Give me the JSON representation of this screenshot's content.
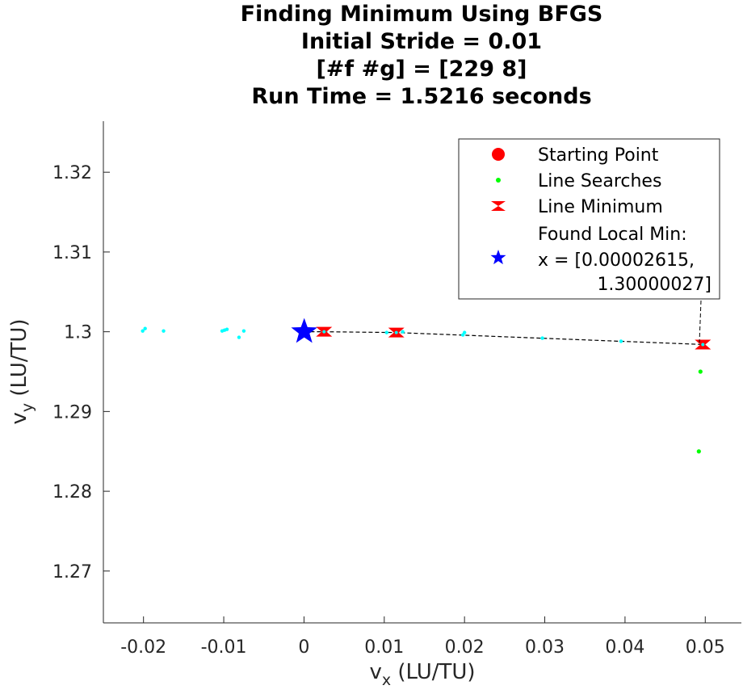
{
  "chart_data": {
    "type": "scatter",
    "title": [
      "Finding Minimum Using BFGS",
      "Initial Stride = 0.01",
      "[#f #g] = [229 8]",
      "Run Time = 1.5216 seconds"
    ],
    "xlabel": {
      "main": "v",
      "sub": "x",
      "unit": " (LU/TU)"
    },
    "ylabel": {
      "main": "v",
      "sub": "y",
      "unit": " (LU/TU)"
    },
    "xlim": [
      -0.025,
      0.0545
    ],
    "ylim": [
      1.2635,
      1.3264
    ],
    "xticks": [
      -0.02,
      -0.01,
      0,
      0.01,
      0.02,
      0.03,
      0.04,
      0.05
    ],
    "xtick_labels": [
      "-0.02",
      "-0.01",
      "0",
      "0.01",
      "0.02",
      "0.03",
      "0.04",
      "0.05"
    ],
    "yticks": [
      1.27,
      1.28,
      1.29,
      1.3,
      1.31,
      1.32
    ],
    "ytick_labels": [
      "1.27",
      "1.28",
      "1.29",
      "1.3",
      "1.31",
      "1.32"
    ],
    "grid": false,
    "legend_position": "top-right",
    "colors": {
      "start": "#ff0000",
      "line_search": "#00ff00",
      "line_min": "#ff0000",
      "found": "#0000ff",
      "evals": "#00ffff",
      "path": "#000000"
    },
    "series": [
      {
        "name": "Starting Point",
        "marker": "circle",
        "x": [
          0.0
        ],
        "y": [
          1.3
        ]
      },
      {
        "name": "Line Searches",
        "marker": "dot",
        "x": [
          0.0494,
          0.0492
        ],
        "y": [
          1.295,
          1.285
        ]
      },
      {
        "name": "Line Minimum",
        "marker": "hourglass",
        "x": [
          0.0025,
          0.0115,
          0.0497
        ],
        "y": [
          1.3,
          1.2999,
          1.2984
        ]
      },
      {
        "name": "Found Local Min:",
        "label_lines": [
          "Found Local Min:",
          "x = [0.00002615,",
          "1.30000027]"
        ],
        "marker": "star",
        "x": [
          2.615e-05
        ],
        "y": [
          1.30000027
        ]
      },
      {
        "marker": "dot",
        "x": [
          -0.0201,
          -0.0198,
          -0.0175,
          -0.0102,
          -0.0099,
          -0.0096,
          -0.0081,
          -0.0075,
          0.0027,
          0.0103,
          0.0117,
          0.0123,
          0.0198,
          0.02,
          0.0297,
          0.0395
        ],
        "y": [
          1.3001,
          1.3004,
          1.3001,
          1.3001,
          1.3002,
          1.3003,
          1.2993,
          1.3001,
          1.3,
          1.2999,
          1.3,
          1.3,
          1.2996,
          1.2999,
          1.2992,
          1.2988
        ]
      }
    ],
    "path": {
      "x": [
        0.0,
        0.0025,
        0.0115,
        0.0497
      ],
      "y": [
        1.3,
        1.3,
        1.2999,
        1.2984
      ]
    }
  }
}
